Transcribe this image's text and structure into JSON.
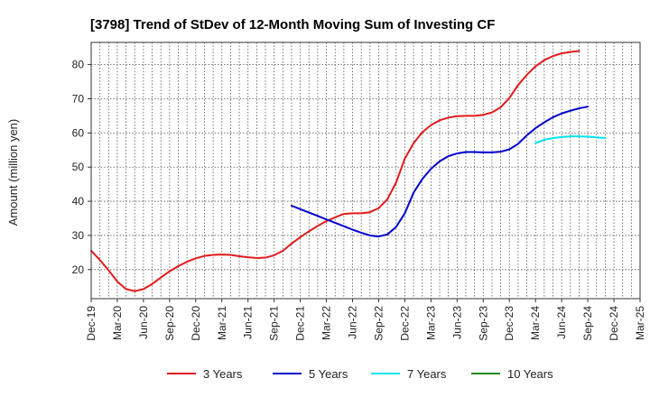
{
  "chart_data": {
    "type": "line",
    "title": "[3798]  Trend of StDev of 12-Month Moving Sum of Investing CF",
    "ylabel": "Amount (million yen)",
    "xlabel": "",
    "ylim": [
      11.5,
      86.5
    ],
    "yticks": [
      20,
      30,
      40,
      50,
      60,
      70,
      80
    ],
    "x_tick_labels": [
      "Dec-19",
      "Mar-20",
      "Jun-20",
      "Sep-20",
      "Dec-20",
      "Mar-21",
      "Jun-21",
      "Sep-21",
      "Dec-21",
      "Mar-22",
      "Jun-22",
      "Sep-22",
      "Dec-22",
      "Mar-23",
      "Jun-23",
      "Sep-23",
      "Dec-23",
      "Mar-24",
      "Jun-24",
      "Sep-24",
      "Dec-24",
      "Mar-25"
    ],
    "x_start": "Dec-19",
    "grid": true,
    "legend_position": "bottom",
    "series": [
      {
        "name": "3 Years",
        "color": "#e31a1c",
        "start_month_index": 0,
        "values": [
          25.5,
          22.8,
          19.8,
          16.5,
          14.3,
          13.7,
          14.3,
          15.8,
          17.7,
          19.5,
          21.0,
          22.3,
          23.3,
          24.0,
          24.3,
          24.4,
          24.3,
          23.9,
          23.6,
          23.4,
          23.5,
          24.2,
          25.5,
          27.6,
          29.5,
          31.2,
          32.8,
          34.2,
          35.3,
          36.3,
          36.5,
          36.5,
          36.8,
          38.0,
          40.6,
          45.5,
          52.5,
          57.0,
          60.2,
          62.3,
          63.7,
          64.5,
          64.9,
          65.0,
          65.0,
          65.3,
          66.0,
          67.5,
          70.2,
          74.0,
          77.0,
          79.5,
          81.3,
          82.5,
          83.3,
          83.7,
          84.0
        ]
      },
      {
        "name": "5 Years",
        "color": "#0000cc",
        "start_month_index": 23,
        "values": [
          38.7,
          37.7,
          36.7,
          35.7,
          34.7,
          33.7,
          32.7,
          31.7,
          30.8,
          30.0,
          29.7,
          30.3,
          32.5,
          36.5,
          42.5,
          46.5,
          49.5,
          51.7,
          53.2,
          54.0,
          54.4,
          54.4,
          54.3,
          54.3,
          54.5,
          55.2,
          56.8,
          59.3,
          61.4,
          63.1,
          64.6,
          65.7,
          66.5,
          67.2,
          67.7
        ]
      },
      {
        "name": "7 Years",
        "color": "#00e5ee",
        "start_month_index": 51,
        "values": [
          57.0,
          58.0,
          58.5,
          58.8,
          59.0,
          59.0,
          58.9,
          58.7,
          58.5
        ]
      },
      {
        "name": "10 Years",
        "color": "#228b22",
        "start_month_index": 0,
        "values": []
      }
    ]
  }
}
